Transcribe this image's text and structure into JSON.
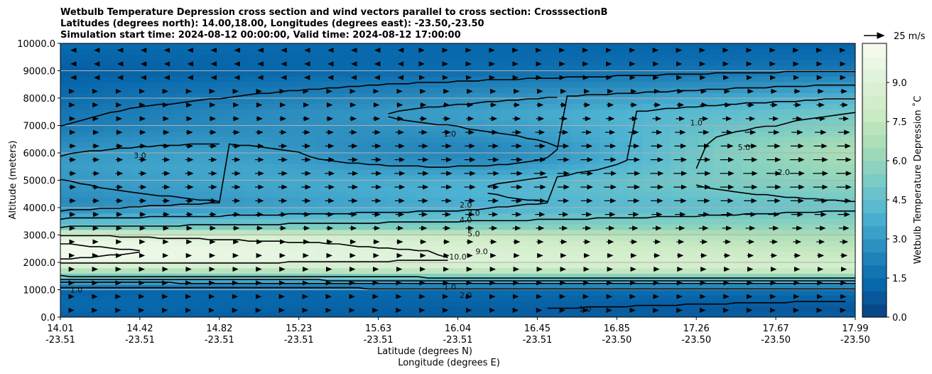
{
  "chart_data": {
    "type": "heatmap",
    "title_lines": [
      "Wetbulb Temperature Depression cross section and wind vectors parallel to cross section: CrosssectionB",
      "Latitudes (degrees north): 14.00,18.00, Longitudes (degrees east): -23.50,-23.50",
      "Simulation start time: 2024-08-12 00:00:00, Valid time: 2024-08-12 17:00:00"
    ],
    "xlabel_lat": "Latitude (degrees N)",
    "xlabel_lon": "Longitude (degrees E)",
    "ylabel": "Altitude (meters)",
    "x_ticks": [
      {
        "lat": "14.01",
        "lon": "-23.51"
      },
      {
        "lat": "14.42",
        "lon": "-23.51"
      },
      {
        "lat": "14.82",
        "lon": "-23.51"
      },
      {
        "lat": "15.23",
        "lon": "-23.51"
      },
      {
        "lat": "15.63",
        "lon": "-23.51"
      },
      {
        "lat": "16.04",
        "lon": "-23.51"
      },
      {
        "lat": "16.45",
        "lon": "-23.51"
      },
      {
        "lat": "16.85",
        "lon": "-23.50"
      },
      {
        "lat": "17.26",
        "lon": "-23.50"
      },
      {
        "lat": "17.67",
        "lon": "-23.50"
      },
      {
        "lat": "17.99",
        "lon": "-23.50"
      }
    ],
    "y_ticks": [
      "0.0",
      "1000.0",
      "2000.0",
      "3000.0",
      "4000.0",
      "5000.0",
      "6000.0",
      "7000.0",
      "8000.0",
      "9000.0",
      "10000.0"
    ],
    "ylim": [
      0,
      10000
    ],
    "grid": "horizontal",
    "colorbar": {
      "label": "Wetbulb Temperature Depression ˚C",
      "ticks": [
        "0.0",
        "1.5",
        "3.0",
        "4.5",
        "6.0",
        "7.5",
        "9.0"
      ],
      "range": [
        0,
        10.5
      ],
      "colormap": [
        "#084081",
        "#0868ac",
        "#2b8cbe",
        "#4eb3d3",
        "#7bccc4",
        "#a8ddb5",
        "#ccebc5",
        "#e0f3db",
        "#f7fcf0"
      ]
    },
    "quiver_key": "25 m/s",
    "contour_levels": [
      "1.0",
      "2.0",
      "3.0",
      "4.0",
      "5.0",
      "9.0",
      "10.0"
    ],
    "profile": {
      "altitude_m": [
        0,
        300,
        600,
        900,
        1200,
        1500,
        1800,
        2100,
        2400,
        2700,
        3000,
        3300,
        3600,
        3900,
        4200,
        4600,
        5000,
        5500,
        6000,
        6500,
        7000,
        7500,
        8000,
        8500,
        9000,
        9500,
        10000
      ],
      "west_depression_c": [
        1.0,
        1.3,
        1.4,
        1.2,
        2.5,
        5.0,
        8.0,
        10.0,
        10.3,
        10.0,
        9.0,
        5.0,
        4.0,
        3.0,
        2.5,
        2.8,
        3.0,
        3.2,
        3.0,
        2.5,
        2.0,
        1.8,
        1.5,
        1.3,
        1.0,
        1.2,
        1.5
      ],
      "east_depression_c": [
        1.0,
        0.8,
        1.0,
        1.5,
        3.0,
        6.0,
        8.5,
        8.0,
        7.5,
        7.0,
        6.5,
        6.0,
        5.5,
        5.0,
        5.0,
        5.5,
        6.0,
        6.5,
        7.0,
        6.5,
        5.5,
        5.0,
        4.0,
        3.0,
        2.0,
        1.5,
        1.2
      ]
    }
  }
}
